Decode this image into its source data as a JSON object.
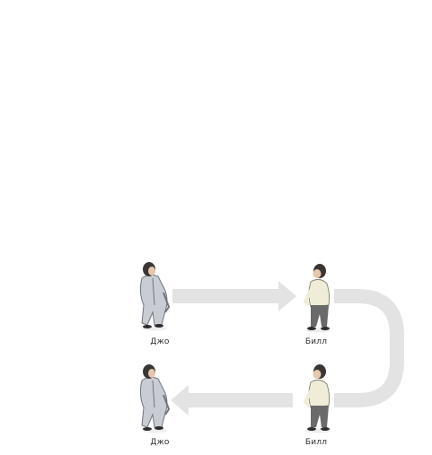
{
  "colors": {
    "arrow": "#e3e3e3",
    "suit": "#c9ccd2",
    "suit_dark": "#6f7580",
    "hair": "#3a3633",
    "skin": "#e6c7ad",
    "sweater": "#efecd8",
    "pants": "#6b6a6a",
    "shoes": "#2e2e2e"
  },
  "people": {
    "joe_top": {
      "name": "Джо"
    },
    "bill_top": {
      "name": "Билл"
    },
    "joe_bottom": {
      "name": "Джо"
    },
    "bill_bottom": {
      "name": "Билл"
    }
  }
}
